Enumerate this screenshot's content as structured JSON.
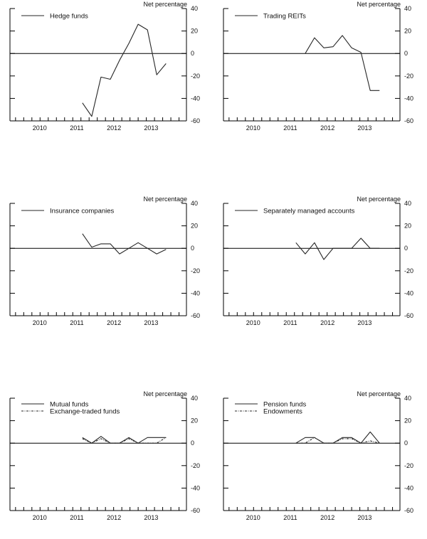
{
  "colors": {
    "line": "#262626",
    "axis": "#000000",
    "background": "#ffffff"
  },
  "chart_data": [
    {
      "panel": "top-left",
      "type": "line",
      "units_label": "Net percentage",
      "xlim": [
        2009.2,
        2013.95
      ],
      "ylim": [
        -60,
        40
      ],
      "yticks": [
        40,
        20,
        0,
        -20,
        -40,
        -60
      ],
      "xticks": [
        2010,
        2011,
        2012,
        2013
      ],
      "grid": false,
      "zero_line": true,
      "legend_position": "top-left",
      "series": [
        {
          "name": "Hedge funds",
          "style": "solid",
          "x": [
            2011.15,
            2011.4,
            2011.65,
            2011.9,
            2012.15,
            2012.4,
            2012.65,
            2012.9,
            2013.15,
            2013.4
          ],
          "values": [
            -44,
            -56,
            -21,
            -23,
            -6,
            9,
            26,
            21,
            -19,
            -9
          ]
        }
      ]
    },
    {
      "panel": "top-right",
      "type": "line",
      "units_label": "Net percentage",
      "xlim": [
        2009.2,
        2013.95
      ],
      "ylim": [
        -60,
        40
      ],
      "yticks": [
        40,
        20,
        0,
        -20,
        -40,
        -60
      ],
      "xticks": [
        2010,
        2011,
        2012,
        2013
      ],
      "grid": false,
      "zero_line": true,
      "legend_position": "top-left",
      "series": [
        {
          "name": "Trading REITs",
          "style": "solid",
          "x": [
            2011.4,
            2011.65,
            2011.9,
            2012.15,
            2012.4,
            2012.65,
            2012.9,
            2013.15,
            2013.4
          ],
          "values": [
            0,
            14,
            5,
            6,
            16,
            5,
            1,
            -33,
            -33
          ]
        }
      ]
    },
    {
      "panel": "middle-left",
      "type": "line",
      "units_label": "Net percentage",
      "xlim": [
        2009.2,
        2013.95
      ],
      "ylim": [
        -60,
        40
      ],
      "yticks": [
        40,
        20,
        0,
        -20,
        -40,
        -60
      ],
      "xticks": [
        2010,
        2011,
        2012,
        2013
      ],
      "grid": false,
      "zero_line": true,
      "legend_position": "top-left",
      "series": [
        {
          "name": "Insurance companies",
          "style": "solid",
          "x": [
            2011.15,
            2011.4,
            2011.65,
            2011.9,
            2012.15,
            2012.4,
            2012.65,
            2012.9,
            2013.15,
            2013.4
          ],
          "values": [
            13,
            1,
            4,
            4,
            -5,
            0,
            5,
            0,
            -5,
            -1
          ]
        }
      ]
    },
    {
      "panel": "middle-right",
      "type": "line",
      "units_label": "Net percentage",
      "xlim": [
        2009.2,
        2013.95
      ],
      "ylim": [
        -60,
        40
      ],
      "yticks": [
        40,
        20,
        0,
        -20,
        -40,
        -60
      ],
      "xticks": [
        2010,
        2011,
        2012,
        2013
      ],
      "grid": false,
      "zero_line": true,
      "legend_position": "top-left",
      "series": [
        {
          "name": "Separately managed accounts",
          "style": "solid",
          "x": [
            2011.15,
            2011.4,
            2011.65,
            2011.9,
            2012.15,
            2012.4,
            2012.65,
            2012.9,
            2013.15,
            2013.4
          ],
          "values": [
            5,
            -5,
            5,
            -10,
            0,
            0,
            0,
            9,
            0,
            0
          ]
        }
      ]
    },
    {
      "panel": "bottom-left",
      "type": "line",
      "units_label": "Net percentage",
      "xlim": [
        2009.2,
        2013.95
      ],
      "ylim": [
        -60,
        40
      ],
      "yticks": [
        40,
        20,
        0,
        -20,
        -40,
        -60
      ],
      "xticks": [
        2010,
        2011,
        2012,
        2013
      ],
      "grid": false,
      "zero_line": true,
      "legend_position": "top-left",
      "series": [
        {
          "name": "Mutual funds",
          "style": "solid",
          "x": [
            2011.15,
            2011.4,
            2011.65,
            2011.9,
            2012.15,
            2012.4,
            2012.65,
            2012.9,
            2013.15,
            2013.4
          ],
          "values": [
            5,
            0,
            6,
            0,
            0,
            5,
            0,
            5,
            5,
            5
          ]
        },
        {
          "name": "Exchange-traded funds",
          "style": "dash-dot",
          "x": [
            2011.15,
            2011.4,
            2011.65,
            2011.9,
            2012.15,
            2012.4,
            2012.65,
            2012.9,
            2013.15,
            2013.4
          ],
          "values": [
            4,
            0,
            4,
            0,
            0,
            4,
            0,
            0,
            0,
            5
          ]
        }
      ]
    },
    {
      "panel": "bottom-right",
      "type": "line",
      "units_label": "Net percentage",
      "xlim": [
        2009.2,
        2013.95
      ],
      "ylim": [
        -60,
        40
      ],
      "yticks": [
        40,
        20,
        0,
        -20,
        -40,
        -60
      ],
      "xticks": [
        2010,
        2011,
        2012,
        2013
      ],
      "grid": false,
      "zero_line": true,
      "legend_position": "top-left",
      "series": [
        {
          "name": "Pension funds",
          "style": "solid",
          "x": [
            2011.15,
            2011.4,
            2011.65,
            2011.9,
            2012.15,
            2012.4,
            2012.65,
            2012.9,
            2013.15,
            2013.4
          ],
          "values": [
            0,
            5,
            5,
            0,
            0,
            5,
            5,
            0,
            10,
            0
          ]
        },
        {
          "name": "Endowments",
          "style": "dash-dot",
          "x": [
            2011.15,
            2011.4,
            2011.65,
            2011.9,
            2012.15,
            2012.4,
            2012.65,
            2012.9,
            2013.15,
            2013.4
          ],
          "values": [
            0,
            0,
            5,
            0,
            0,
            4,
            4,
            0,
            2,
            0
          ]
        }
      ]
    }
  ]
}
